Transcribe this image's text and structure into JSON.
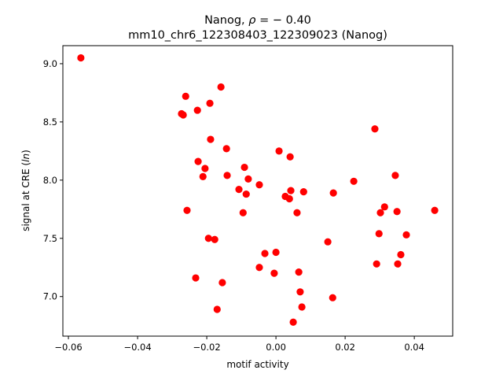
{
  "chart_data": {
    "type": "scatter",
    "title_line1_prefix": "Nanog, ",
    "title_rho": "ρ",
    "title_line1_suffix": " = − 0.40",
    "title_line2": "mm10_chr6_122308403_122309023 (Nanog)",
    "xlabel": "motif activity",
    "ylabel_prefix": "signal at CRE (",
    "ylabel_italic": "ln",
    "ylabel_suffix": ")",
    "xlim": [
      -0.0616,
      0.0511
    ],
    "ylim": [
      6.66,
      9.155
    ],
    "xticks": [
      -0.06,
      -0.04,
      -0.02,
      0.0,
      0.02,
      0.04
    ],
    "xtick_labels": [
      "−0.06",
      "−0.04",
      "−0.02",
      "0.00",
      "0.02",
      "0.04"
    ],
    "yticks": [
      7.0,
      7.5,
      8.0,
      8.5,
      9.0
    ],
    "ytick_labels": [
      "7.0",
      "7.5",
      "8.0",
      "8.5",
      "9.0"
    ],
    "grid": false,
    "marker_color": "#ff0000",
    "points": [
      [
        -0.0564,
        9.05
      ],
      [
        -0.0261,
        8.72
      ],
      [
        -0.0159,
        8.8
      ],
      [
        -0.0191,
        8.66
      ],
      [
        -0.0227,
        8.6
      ],
      [
        -0.0273,
        8.57
      ],
      [
        -0.0268,
        8.56
      ],
      [
        -0.0189,
        8.35
      ],
      [
        -0.0143,
        8.27
      ],
      [
        -0.0225,
        8.16
      ],
      [
        -0.0205,
        8.1
      ],
      [
        -0.0211,
        8.03
      ],
      [
        -0.0091,
        8.11
      ],
      [
        -0.0141,
        8.04
      ],
      [
        -0.008,
        8.01
      ],
      [
        -0.0107,
        7.92
      ],
      [
        -0.0086,
        7.88
      ],
      [
        -0.0048,
        7.96
      ],
      [
        -0.0257,
        7.74
      ],
      [
        -0.0095,
        7.72
      ],
      [
        -0.0195,
        7.5
      ],
      [
        -0.0177,
        7.49
      ],
      [
        0.0009,
        8.25
      ],
      [
        0.0041,
        8.2
      ],
      [
        0.0043,
        7.91
      ],
      [
        0.0027,
        7.86
      ],
      [
        0.0039,
        7.84
      ],
      [
        0.008,
        7.9
      ],
      [
        0.0061,
        7.72
      ],
      [
        0.0166,
        7.89
      ],
      [
        0.0225,
        7.99
      ],
      [
        0.0286,
        8.44
      ],
      [
        0.0345,
        8.04
      ],
      [
        0.0314,
        7.77
      ],
      [
        0.0302,
        7.72
      ],
      [
        0.035,
        7.73
      ],
      [
        0.0459,
        7.74
      ],
      [
        0.0298,
        7.54
      ],
      [
        0.0377,
        7.53
      ],
      [
        0.015,
        7.47
      ],
      [
        -0.0032,
        7.37
      ],
      [
        0.0,
        7.38
      ],
      [
        0.0361,
        7.36
      ],
      [
        -0.0048,
        7.25
      ],
      [
        -0.0005,
        7.2
      ],
      [
        0.0066,
        7.21
      ],
      [
        0.0291,
        7.28
      ],
      [
        0.0352,
        7.28
      ],
      [
        -0.0232,
        7.16
      ],
      [
        -0.0155,
        7.12
      ],
      [
        0.007,
        7.04
      ],
      [
        0.0164,
        6.99
      ],
      [
        0.0075,
        6.91
      ],
      [
        -0.017,
        6.89
      ],
      [
        0.005,
        6.78
      ]
    ]
  }
}
